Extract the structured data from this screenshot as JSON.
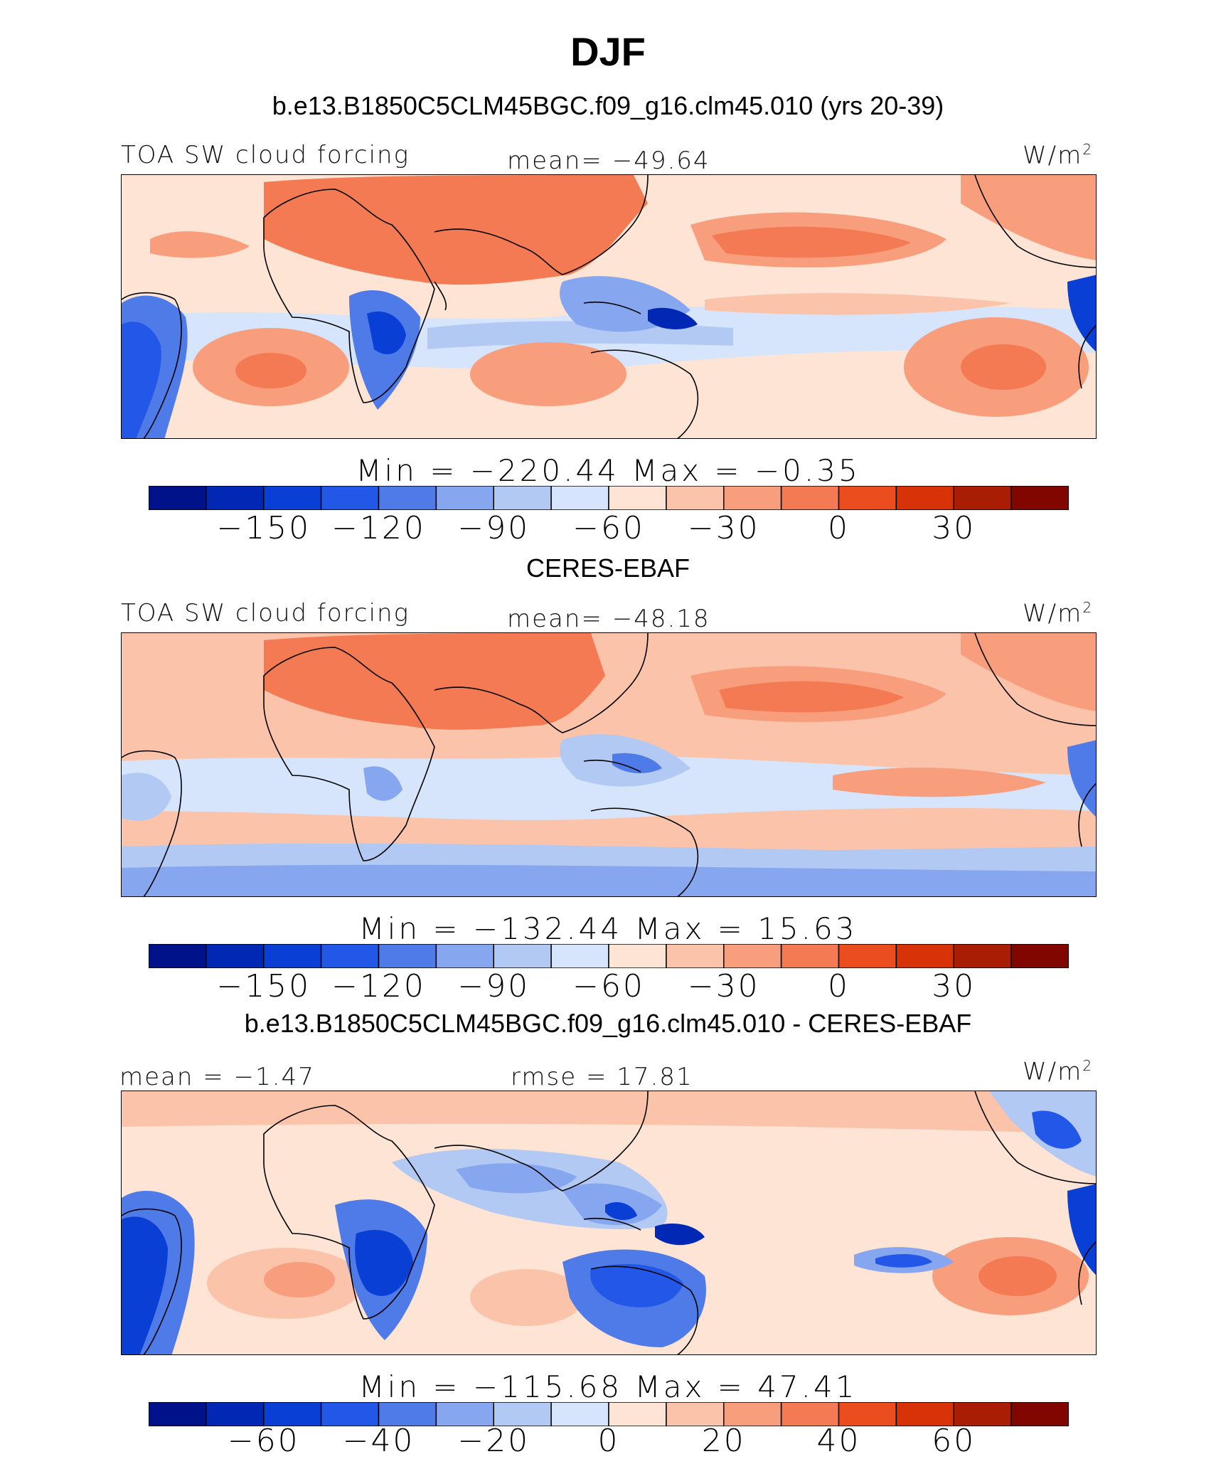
{
  "title": "DJF",
  "panels": [
    {
      "header": "b.e13.B1850C5CLM45BGC.f09_g16.clm45.010 (yrs 20-39)",
      "left_label": "TOA SW cloud forcing",
      "center_label": "mean= −49.64",
      "units": "W/m",
      "units_sup": "2",
      "minmax": "Min  =  −220.44  Max  =    −0.35",
      "colorbar": {
        "colors": [
          "#00128a",
          "#0128b4",
          "#0a3fd6",
          "#2257e8",
          "#4f7be8",
          "#86a6ef",
          "#b2c9f4",
          "#d6e5fb",
          "#fde4d4",
          "#fbc4aa",
          "#f89e7d",
          "#f37a52",
          "#ec4d1f",
          "#d83208",
          "#a81d04",
          "#820600"
        ],
        "tick_labels": [
          "−150",
          "−120",
          "−90",
          "−60",
          "−30",
          "0",
          "30"
        ],
        "tick_boundaries": [
          2,
          4,
          6,
          8,
          10,
          12,
          14
        ]
      }
    },
    {
      "header": "CERES-EBAF",
      "left_label": "TOA SW cloud forcing",
      "center_label": "mean= −48.18",
      "units": "W/m",
      "units_sup": "2",
      "minmax": "Min  =  −132.44  Max  =    15.63",
      "colorbar": {
        "colors": [
          "#00128a",
          "#0128b4",
          "#0a3fd6",
          "#2257e8",
          "#4f7be8",
          "#86a6ef",
          "#b2c9f4",
          "#d6e5fb",
          "#fde4d4",
          "#fbc4aa",
          "#f89e7d",
          "#f37a52",
          "#ec4d1f",
          "#d83208",
          "#a81d04",
          "#820600"
        ],
        "tick_labels": [
          "−150",
          "−120",
          "−90",
          "−60",
          "−30",
          "0",
          "30"
        ],
        "tick_boundaries": [
          2,
          4,
          6,
          8,
          10,
          12,
          14
        ]
      }
    },
    {
      "header": "b.e13.B1850C5CLM45BGC.f09_g16.clm45.010 - CERES-EBAF",
      "left_label": "mean =  −1.47",
      "center_label": "rmse =   17.81",
      "units": "W/m",
      "units_sup": "2",
      "minmax": "Min  =  −115.68  Max  =   47.41",
      "colorbar": {
        "colors": [
          "#00128a",
          "#0128b4",
          "#0a3fd6",
          "#2257e8",
          "#4f7be8",
          "#86a6ef",
          "#b2c9f4",
          "#d6e5fb",
          "#fde4d4",
          "#fbc4aa",
          "#f89e7d",
          "#f37a52",
          "#ec4d1f",
          "#d83208",
          "#a81d04",
          "#820600"
        ],
        "tick_labels": [
          "−60",
          "−40",
          "−20",
          "0",
          "20",
          "40",
          "60"
        ],
        "tick_boundaries": [
          2,
          4,
          6,
          8,
          10,
          12,
          14
        ]
      }
    }
  ]
}
